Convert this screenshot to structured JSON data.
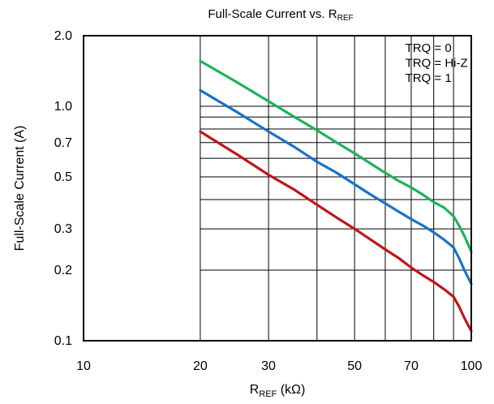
{
  "chart_data": {
    "type": "line",
    "title": {
      "main": "Full-Scale Current vs. R",
      "sub": "REF"
    },
    "xlabel": {
      "main": "R",
      "sub": "REF",
      "rest": " (kΩ)"
    },
    "ylabel": "Full-Scale Current (A)",
    "xscale": "log",
    "yscale": "log",
    "xlim": [
      10,
      100
    ],
    "ylim": [
      0.1,
      2.0
    ],
    "xticks": [
      {
        "value": 10,
        "label": "10"
      },
      {
        "value": 20,
        "label": "20"
      },
      {
        "value": 30,
        "label": "30"
      },
      {
        "value": 50,
        "label": "50"
      },
      {
        "value": 70,
        "label": "70"
      },
      {
        "value": 100,
        "label": "100"
      }
    ],
    "xgrid": [
      20,
      30,
      40,
      50,
      60,
      70,
      80,
      90
    ],
    "yticks": [
      {
        "value": 2.0,
        "label": "2.0"
      },
      {
        "value": 1.0,
        "label": "1.0"
      },
      {
        "value": 0.7,
        "label": "0.7"
      },
      {
        "value": 0.5,
        "label": "0.5"
      },
      {
        "value": 0.3,
        "label": "0.3"
      },
      {
        "value": 0.2,
        "label": "0.2"
      },
      {
        "value": 0.1,
        "label": "0.1"
      }
    ],
    "ygrid": [
      0.2,
      0.3,
      0.4,
      0.5,
      0.6,
      0.7,
      0.8,
      0.9,
      1.0
    ],
    "grid": true,
    "legend_position": "top-right",
    "series": [
      {
        "name": "TRQ = 0",
        "color": "#1db35a",
        "x": [
          20,
          25,
          30,
          35,
          40,
          45,
          50,
          55,
          60,
          65,
          70,
          75,
          80,
          85,
          90,
          93,
          96,
          100
        ],
        "y": [
          1.56,
          1.26,
          1.05,
          0.9,
          0.79,
          0.7,
          0.63,
          0.57,
          0.52,
          0.48,
          0.45,
          0.42,
          0.39,
          0.37,
          0.34,
          0.31,
          0.28,
          0.24
        ]
      },
      {
        "name": "TRQ = Hi-Z",
        "color": "#1a73c4",
        "x": [
          20,
          25,
          30,
          35,
          40,
          45,
          50,
          55,
          60,
          65,
          70,
          75,
          80,
          85,
          90,
          93,
          96,
          100
        ],
        "y": [
          1.17,
          0.94,
          0.78,
          0.67,
          0.58,
          0.52,
          0.465,
          0.42,
          0.385,
          0.355,
          0.33,
          0.31,
          0.29,
          0.27,
          0.25,
          0.225,
          0.2,
          0.175
        ]
      },
      {
        "name": "TRQ = 1",
        "color": "#c01616",
        "x": [
          20,
          25,
          30,
          35,
          40,
          45,
          50,
          55,
          60,
          65,
          70,
          75,
          80,
          85,
          90,
          93,
          96,
          100
        ],
        "y": [
          0.78,
          0.62,
          0.51,
          0.44,
          0.38,
          0.335,
          0.3,
          0.27,
          0.245,
          0.225,
          0.205,
          0.19,
          0.178,
          0.166,
          0.154,
          0.14,
          0.125,
          0.11
        ]
      }
    ]
  }
}
